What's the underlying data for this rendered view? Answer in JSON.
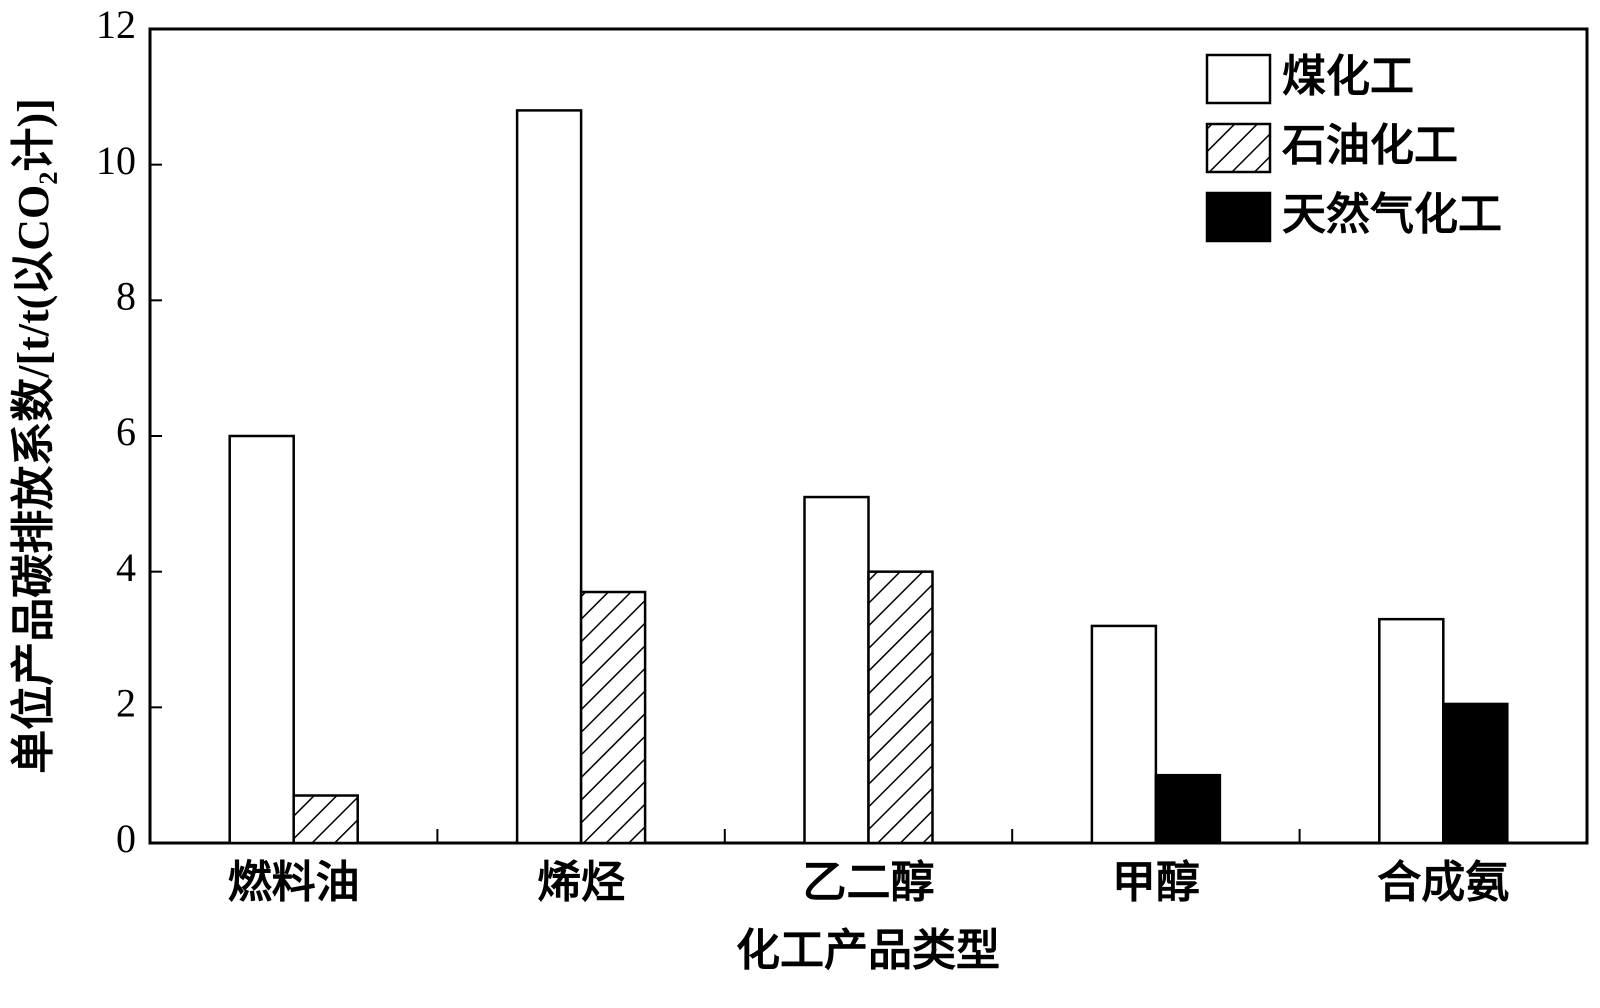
{
  "chart_data": {
    "type": "bar",
    "x_label": "化工产品类型",
    "y_label": "单位产品碳排放系数/[t/t(以CO₂计)]",
    "categories": [
      "燃料油",
      "烯烃",
      "乙二醇",
      "甲醇",
      "合成氨"
    ],
    "series": [
      {
        "name": "煤化工",
        "color": "#ffffff",
        "values": [
          6.0,
          10.8,
          5.1,
          3.2,
          3.3
        ]
      },
      {
        "name": "石油化工",
        "color": "#ffffff",
        "pattern": "hatch",
        "values": [
          0.7,
          3.7,
          4.0,
          null,
          null
        ]
      },
      {
        "name": "天然气化工",
        "color": "#000000",
        "values": [
          null,
          null,
          null,
          1.0,
          2.05
        ]
      }
    ],
    "ylim": [
      0,
      12
    ],
    "yticks": [
      0,
      2,
      4,
      6,
      8,
      10,
      12
    ],
    "legend": "upper right",
    "grid": false
  }
}
